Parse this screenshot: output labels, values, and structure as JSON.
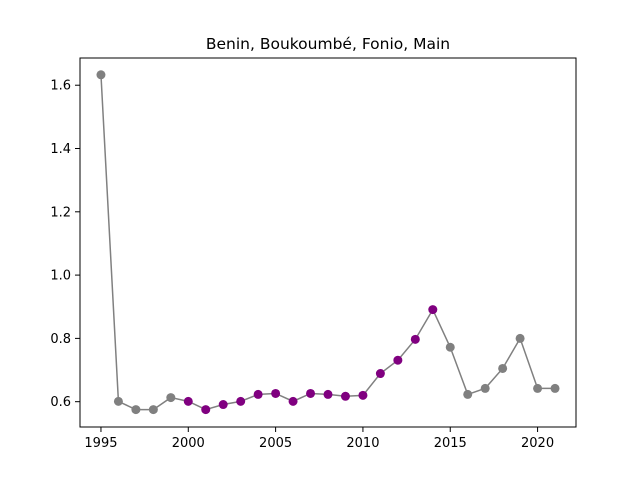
{
  "chart_data": {
    "type": "line",
    "title": "Benin, Boukoumbé, Fonio, Main",
    "xlabel": "",
    "ylabel": "",
    "xlim": [
      1993.8,
      2022.2
    ],
    "ylim": [
      0.52,
      1.686
    ],
    "xticks": [
      1995,
      2000,
      2005,
      2010,
      2015,
      2020
    ],
    "xtick_labels": [
      "1995",
      "2000",
      "2005",
      "2010",
      "2015",
      "2020"
    ],
    "yticks": [
      0.6,
      0.8,
      1.0,
      1.2,
      1.4,
      1.6
    ],
    "ytick_labels": [
      "0.6",
      "0.8",
      "1.0",
      "1.2",
      "1.4",
      "1.6"
    ],
    "grid": false,
    "line_color": "#808080",
    "marker_colors": {
      "gray": "#808080",
      "purple": "#800080"
    },
    "x": [
      1995,
      1996,
      1997,
      1998,
      1999,
      2000,
      2001,
      2002,
      2003,
      2004,
      2005,
      2006,
      2007,
      2008,
      2009,
      2010,
      2011,
      2012,
      2013,
      2014,
      2015,
      2016,
      2017,
      2018,
      2019,
      2020,
      2021
    ],
    "y": [
      1.633,
      0.601,
      0.575,
      0.575,
      0.613,
      0.601,
      0.575,
      0.591,
      0.601,
      0.623,
      0.626,
      0.601,
      0.626,
      0.623,
      0.617,
      0.62,
      0.689,
      0.731,
      0.797,
      0.891,
      0.772,
      0.623,
      0.642,
      0.705,
      0.8,
      0.642,
      0.642
    ],
    "marker_color_keys": [
      "gray",
      "gray",
      "gray",
      "gray",
      "gray",
      "purple",
      "purple",
      "purple",
      "purple",
      "purple",
      "purple",
      "purple",
      "purple",
      "purple",
      "purple",
      "purple",
      "purple",
      "purple",
      "purple",
      "purple",
      "gray",
      "gray",
      "gray",
      "gray",
      "gray",
      "gray",
      "gray"
    ]
  }
}
